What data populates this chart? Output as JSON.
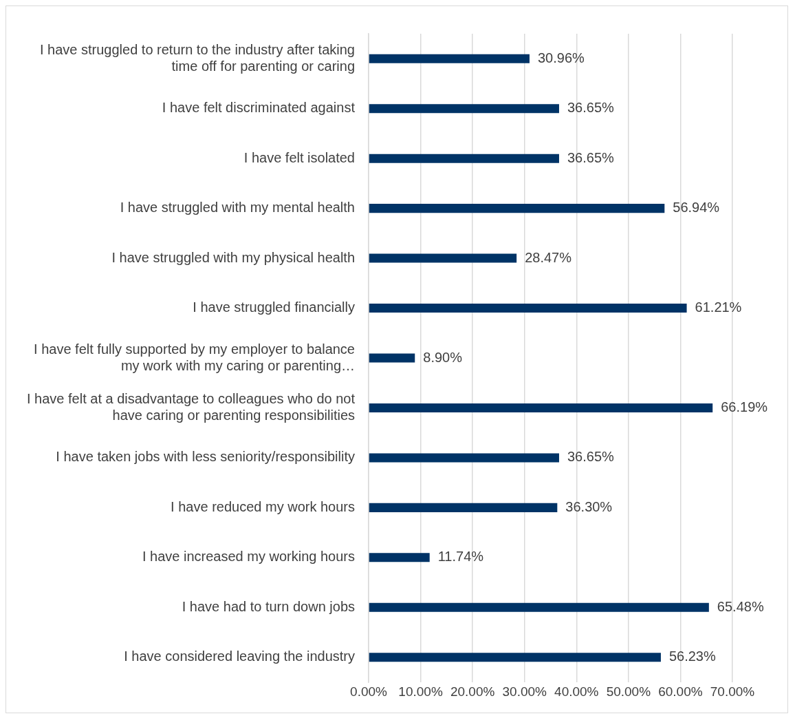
{
  "chart_data": {
    "type": "bar",
    "orientation": "horizontal",
    "categories": [
      "I have struggled to return to the industry after taking time off for parenting or caring",
      "I have felt discriminated against",
      "I have felt isolated",
      "I have struggled with my mental health",
      "I have struggled with my physical health",
      "I have struggled financially",
      "I have felt fully supported by my employer to balance my work with my caring or parenting…",
      "I have felt at a disadvantage to colleagues who do not have caring or parenting responsibilities",
      "I have taken jobs with less seniority/responsibility",
      "I have reduced my work hours",
      "I have increased my working hours",
      "I have had to turn down jobs",
      "I have considered leaving the industry"
    ],
    "values": [
      30.96,
      36.65,
      36.65,
      56.94,
      28.47,
      61.21,
      8.9,
      66.19,
      36.65,
      36.3,
      11.74,
      65.48,
      56.23
    ],
    "value_labels": [
      "30.96%",
      "36.65%",
      "36.65%",
      "56.94%",
      "28.47%",
      "61.21%",
      "8.90%",
      "66.19%",
      "36.65%",
      "36.30%",
      "11.74%",
      "65.48%",
      "56.23%"
    ],
    "color": "#003366",
    "xlim": [
      0,
      70
    ],
    "xticks": [
      {
        "value": 0,
        "label": "0.00%"
      },
      {
        "value": 10,
        "label": "10.00%"
      },
      {
        "value": 20,
        "label": "20.00%"
      },
      {
        "value": 30,
        "label": "30.00%"
      },
      {
        "value": 40,
        "label": "40.00%"
      },
      {
        "value": 50,
        "label": "50.00%"
      },
      {
        "value": 60,
        "label": "60.00%"
      },
      {
        "value": 70,
        "label": "70.00%"
      }
    ],
    "grid": "x",
    "legend": false
  }
}
